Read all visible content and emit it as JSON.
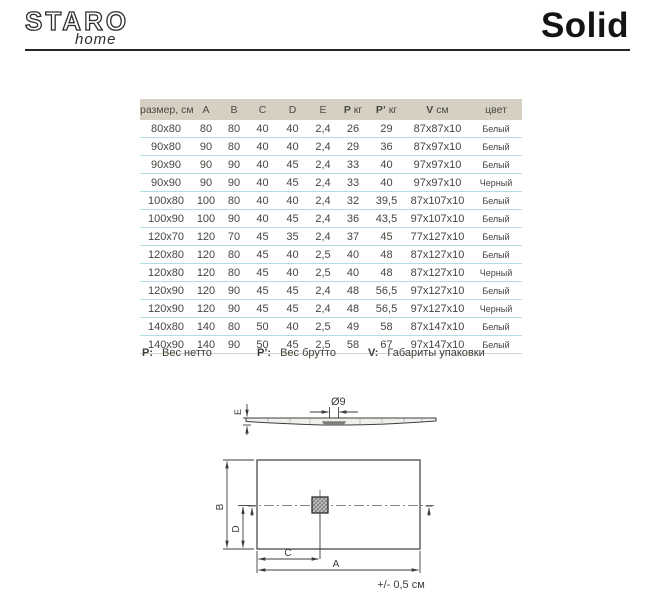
{
  "header": {
    "brand": "STARO",
    "brand_sub": "home",
    "product_title": "Solid"
  },
  "table": {
    "columns": [
      {
        "b": "",
        "t": "размер, см"
      },
      {
        "b": "",
        "t": "A"
      },
      {
        "b": "",
        "t": "B"
      },
      {
        "b": "",
        "t": "C"
      },
      {
        "b": "",
        "t": "D"
      },
      {
        "b": "",
        "t": "E"
      },
      {
        "b": "P",
        "t": "кг"
      },
      {
        "b": "P’",
        "t": "кг"
      },
      {
        "b": "V",
        "t": "см"
      },
      {
        "b": "",
        "t": "цвет"
      }
    ],
    "rows": [
      [
        "80x80",
        "80",
        "80",
        "40",
        "40",
        "2,4",
        "26",
        "29",
        "87x87x10",
        "Белый"
      ],
      [
        "90x80",
        "90",
        "80",
        "40",
        "40",
        "2,4",
        "29",
        "36",
        "87x97x10",
        "Белый"
      ],
      [
        "90x90",
        "90",
        "90",
        "40",
        "45",
        "2,4",
        "33",
        "40",
        "97x97x10",
        "Белый"
      ],
      [
        "90x90",
        "90",
        "90",
        "40",
        "45",
        "2,4",
        "33",
        "40",
        "97x97x10",
        "Черный"
      ],
      [
        "100x80",
        "100",
        "80",
        "40",
        "40",
        "2,4",
        "32",
        "39,5",
        "87x107x10",
        "Белый"
      ],
      [
        "100x90",
        "100",
        "90",
        "40",
        "45",
        "2,4",
        "36",
        "43,5",
        "97x107x10",
        "Белый"
      ],
      [
        "120x70",
        "120",
        "70",
        "45",
        "35",
        "2,4",
        "37",
        "45",
        "77x127x10",
        "Белый"
      ],
      [
        "120x80",
        "120",
        "80",
        "45",
        "40",
        "2,5",
        "40",
        "48",
        "87x127x10",
        "Белый"
      ],
      [
        "120x80",
        "120",
        "80",
        "45",
        "40",
        "2,5",
        "40",
        "48",
        "87x127x10",
        "Черный"
      ],
      [
        "120x90",
        "120",
        "90",
        "45",
        "45",
        "2,4",
        "48",
        "56,5",
        "97x127x10",
        "Белый"
      ],
      [
        "120x90",
        "120",
        "90",
        "45",
        "45",
        "2,4",
        "48",
        "56,5",
        "97x127x10",
        "Черный"
      ],
      [
        "140x80",
        "140",
        "80",
        "50",
        "40",
        "2,5",
        "49",
        "58",
        "87x147x10",
        "Белый"
      ],
      [
        "140x90",
        "140",
        "90",
        "50",
        "45",
        "2,5",
        "58",
        "67",
        "97x147x10",
        "Белый"
      ]
    ]
  },
  "legend": {
    "items": [
      {
        "symbol": "P:",
        "text": "Вес нетто"
      },
      {
        "symbol": "P’:",
        "text": "Вес брутто"
      },
      {
        "symbol": "V:",
        "text": "Габариты упаковки"
      }
    ]
  },
  "drawing": {
    "side_view": {
      "thickness_label": "E",
      "drain_label": "Ø9"
    },
    "top_view": {
      "width_label": "B",
      "drain_offset_vertical_label": "D",
      "drain_offset_horizontal_label": "C",
      "length_label": "A",
      "tolerance": "+/- 0,5 см"
    }
  },
  "colors": {
    "table_header_bg": "#d6d0c3",
    "row_separator": "#b2dde4",
    "text": "#454540",
    "line": "#3c3c3c"
  }
}
